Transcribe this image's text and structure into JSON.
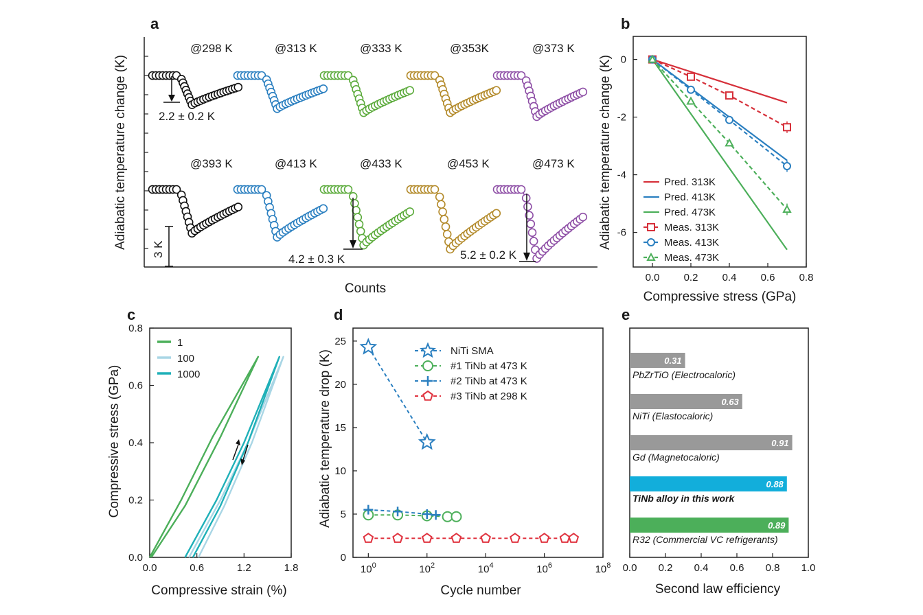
{
  "panels": {
    "a": {
      "letter": "a",
      "ylabel": "Adiabatic temperature change (K)",
      "xlabel": "Counts",
      "row1": [
        "@298 K",
        "@313 K",
        "@333 K",
        "@353K",
        "@373 K"
      ],
      "row2": [
        "@393 K",
        "@413 K",
        "@433 K",
        "@453 K",
        "@473 K"
      ],
      "ann_298": "2.2 ± 0.2 K",
      "ann_433": "4.2 ± 0.3 K",
      "ann_473": "5.2 ± 0.2 K",
      "scale_bar": "3 K",
      "colors": [
        "#111111",
        "#2a7fc0",
        "#5cab3c",
        "#b38a2a",
        "#8e4fa6"
      ]
    },
    "b": {
      "letter": "b",
      "ylabel": "Adiabatic temperature change (K)",
      "xlabel": "Compressive stress (GPa)"
    },
    "c": {
      "letter": "c",
      "ylabel": "Compressive stress (GPa)",
      "xlabel": "Compressive strain (%)"
    },
    "d": {
      "letter": "d",
      "ylabel": "Adiabatic temperature drop (K)",
      "xlabel": "Cycle number"
    },
    "e": {
      "letter": "e",
      "xlabel": "Second law efficiency"
    }
  },
  "chart_data": [
    {
      "panel": "a",
      "type": "line",
      "title": "",
      "xlabel": "Counts",
      "ylabel": "Adiabatic temperature change (K)",
      "series": [
        {
          "name": "@298 K",
          "drop": 2.2
        },
        {
          "name": "@313 K",
          "drop": 2.5
        },
        {
          "name": "@333 K",
          "drop": 2.8
        },
        {
          "name": "@353K",
          "drop": 2.8
        },
        {
          "name": "@373 K",
          "drop": 3.1
        },
        {
          "name": "@393 K",
          "drop": 3.3
        },
        {
          "name": "@413 K",
          "drop": 3.6
        },
        {
          "name": "@433 K",
          "drop": 4.2
        },
        {
          "name": "@453 K",
          "drop": 4.5
        },
        {
          "name": "@473 K",
          "drop": 5.2
        }
      ]
    },
    {
      "panel": "b",
      "type": "line",
      "xlabel": "Compressive stress (GPa)",
      "ylabel": "Adiabatic temperature change (K)",
      "xlim": [
        -0.1,
        0.8
      ],
      "ylim": [
        -7.2,
        0.8
      ],
      "xticks": [
        "0.0",
        "0.2",
        "0.4",
        "0.6",
        "0.8"
      ],
      "yticks": [
        "0",
        "-2",
        "-4",
        "-6"
      ],
      "series": [
        {
          "name": "Pred. 313K",
          "color": "#d6303a",
          "style": "solid",
          "x": [
            0,
            0.7
          ],
          "y": [
            0,
            -1.5
          ]
        },
        {
          "name": "Pred. 413K",
          "color": "#2a7fc0",
          "style": "solid",
          "x": [
            0,
            0.7
          ],
          "y": [
            0,
            -3.5
          ]
        },
        {
          "name": "Pred. 473K",
          "color": "#4caf5a",
          "style": "solid",
          "x": [
            0,
            0.7
          ],
          "y": [
            0,
            -6.6
          ]
        },
        {
          "name": "Meas. 313K",
          "color": "#d6303a",
          "style": "dashed",
          "marker": "square",
          "x": [
            0,
            0.2,
            0.4,
            0.7
          ],
          "y": [
            0,
            -0.6,
            -1.25,
            -2.35
          ],
          "err": [
            0,
            0.1,
            0.1,
            0.2
          ]
        },
        {
          "name": "Meas. 413K",
          "color": "#2a7fc0",
          "style": "dashed",
          "marker": "circle",
          "x": [
            0,
            0.2,
            0.4,
            0.7
          ],
          "y": [
            0,
            -1.05,
            -2.1,
            -3.7
          ],
          "err": [
            0,
            0.1,
            0.1,
            0.2
          ]
        },
        {
          "name": "Meas. 473K",
          "color": "#4caf5a",
          "style": "dashed",
          "marker": "triangle",
          "x": [
            0,
            0.2,
            0.4,
            0.7
          ],
          "y": [
            0,
            -1.45,
            -2.9,
            -5.2
          ],
          "err": [
            0,
            0.1,
            0.1,
            0.2
          ]
        }
      ]
    },
    {
      "panel": "c",
      "type": "line",
      "xlabel": "Compressive strain (%)",
      "ylabel": "Compressive stress (GPa)",
      "xlim": [
        0.0,
        1.8
      ],
      "ylim": [
        0.0,
        0.8
      ],
      "xticks": [
        "0.0",
        "0.6",
        "1.2",
        "1.8"
      ],
      "yticks": [
        "0.0",
        "0.2",
        "0.4",
        "0.6",
        "0.8"
      ],
      "series": [
        {
          "name": "1",
          "color": "#4caf5a",
          "loading": [
            [
              0.0,
              0.0
            ],
            [
              0.4,
              0.2
            ],
            [
              0.8,
              0.42
            ],
            [
              1.38,
              0.7
            ]
          ],
          "unloading": [
            [
              1.38,
              0.7
            ],
            [
              0.9,
              0.42
            ],
            [
              0.45,
              0.18
            ],
            [
              0.02,
              0.0
            ]
          ]
        },
        {
          "name": "100",
          "color": "#a9d6e5",
          "loading": [
            [
              0.5,
              0.0
            ],
            [
              0.9,
              0.2
            ],
            [
              1.25,
              0.4
            ],
            [
              1.7,
              0.7
            ]
          ],
          "unloading": [
            [
              1.7,
              0.7
            ],
            [
              1.3,
              0.4
            ],
            [
              0.95,
              0.18
            ],
            [
              0.62,
              0.0
            ]
          ]
        },
        {
          "name": "1000",
          "color": "#1fb0b8",
          "loading": [
            [
              0.45,
              0.0
            ],
            [
              0.85,
              0.2
            ],
            [
              1.2,
              0.4
            ],
            [
              1.65,
              0.7
            ]
          ],
          "unloading": [
            [
              1.65,
              0.7
            ],
            [
              1.25,
              0.4
            ],
            [
              0.9,
              0.18
            ],
            [
              0.55,
              0.0
            ]
          ]
        }
      ]
    },
    {
      "panel": "d",
      "type": "scatter",
      "xlabel": "Cycle number",
      "ylabel": "Adiabatic temperature drop (K)",
      "xscale": "log",
      "xlim": [
        0.3,
        100000000
      ],
      "ylim": [
        0,
        26.5
      ],
      "xticks": [
        "10^0",
        "10^2",
        "10^4",
        "10^6",
        "10^8"
      ],
      "yticks": [
        "0",
        "5",
        "10",
        "15",
        "20",
        "25"
      ],
      "series": [
        {
          "name": "NiTi SMA",
          "color": "#2a7fc0",
          "marker": "star",
          "x": [
            1,
            100
          ],
          "y": [
            24.3,
            13.3
          ]
        },
        {
          "name": "#1 TiNb at 473 K",
          "color": "#4caf5a",
          "marker": "circle",
          "x": [
            1,
            10,
            100,
            500,
            1000
          ],
          "y": [
            4.9,
            4.9,
            4.8,
            4.7,
            4.7
          ]
        },
        {
          "name": "#2 TiNb at 473 K",
          "color": "#2a7fc0",
          "marker": "plus",
          "x": [
            1,
            10,
            100,
            200
          ],
          "y": [
            5.5,
            5.3,
            5.0,
            4.9
          ]
        },
        {
          "name": "#3 TiNb at 298 K",
          "color": "#e0333f",
          "marker": "pentagon",
          "x": [
            1,
            10,
            100,
            1000,
            10000,
            100000,
            1000000,
            5000000,
            10000000
          ],
          "y": [
            2.2,
            2.2,
            2.2,
            2.2,
            2.2,
            2.2,
            2.2,
            2.2,
            2.2
          ]
        }
      ]
    },
    {
      "panel": "e",
      "type": "bar",
      "orientation": "horizontal",
      "xlabel": "Second law efficiency",
      "xlim": [
        0.0,
        1.0
      ],
      "xticks": [
        "0.0",
        "0.2",
        "0.4",
        "0.6",
        "0.8",
        "1.0"
      ],
      "categories": [
        "PbZrTiO (Electrocaloric)",
        "NiTi (Elastocaloric)",
        "Gd (Magnetocaloric)",
        "TiNb alloy in this work",
        "R32 (Commercial VC refrigerants)"
      ],
      "values": [
        0.31,
        0.63,
        0.91,
        0.88,
        0.89
      ],
      "value_labels": [
        "0.31",
        "0.63",
        "0.91",
        "0.88",
        "0.89"
      ],
      "colors": [
        "#999999",
        "#999999",
        "#999999",
        "#12aedb",
        "#4caf5a"
      ]
    }
  ]
}
